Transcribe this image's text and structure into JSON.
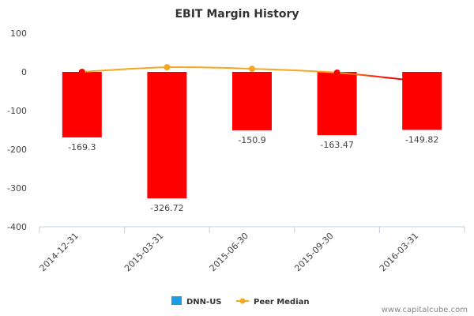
{
  "chart_data": {
    "type": "bar",
    "title": "EBIT Margin History",
    "xlabel": "",
    "ylabel": "",
    "categories": [
      "2014-12-31",
      "2015-03-31",
      "2015-06-30",
      "2015-09-30",
      "2016-03-31"
    ],
    "series": [
      {
        "name": "DNN-US",
        "type": "bar",
        "legend_color": "#1a9ee5",
        "bar_color": "#ff0000",
        "values": [
          -169.3,
          -326.72,
          -150.9,
          -163.47,
          -149.82
        ],
        "data_labels": [
          "-169.3",
          "-326.72",
          "-150.9",
          "-163.47",
          "-149.82"
        ]
      },
      {
        "name": "Peer Median",
        "type": "line",
        "color": "#f5a623",
        "values": [
          0,
          12,
          8,
          -2,
          -25
        ],
        "point_colors": [
          "#ff0000",
          "#f5a623",
          "#f5a623",
          "#ff0000",
          null
        ]
      }
    ],
    "ylim": [
      -400,
      100
    ],
    "yticks": [
      100,
      0,
      -100,
      -200,
      -300,
      -400
    ],
    "ytick_labels": [
      "100",
      "0",
      "-100",
      "-200",
      "-300",
      "-400"
    ],
    "grid": false,
    "legend_position": "bottom-center"
  },
  "footer": "www.capitalcube.com"
}
